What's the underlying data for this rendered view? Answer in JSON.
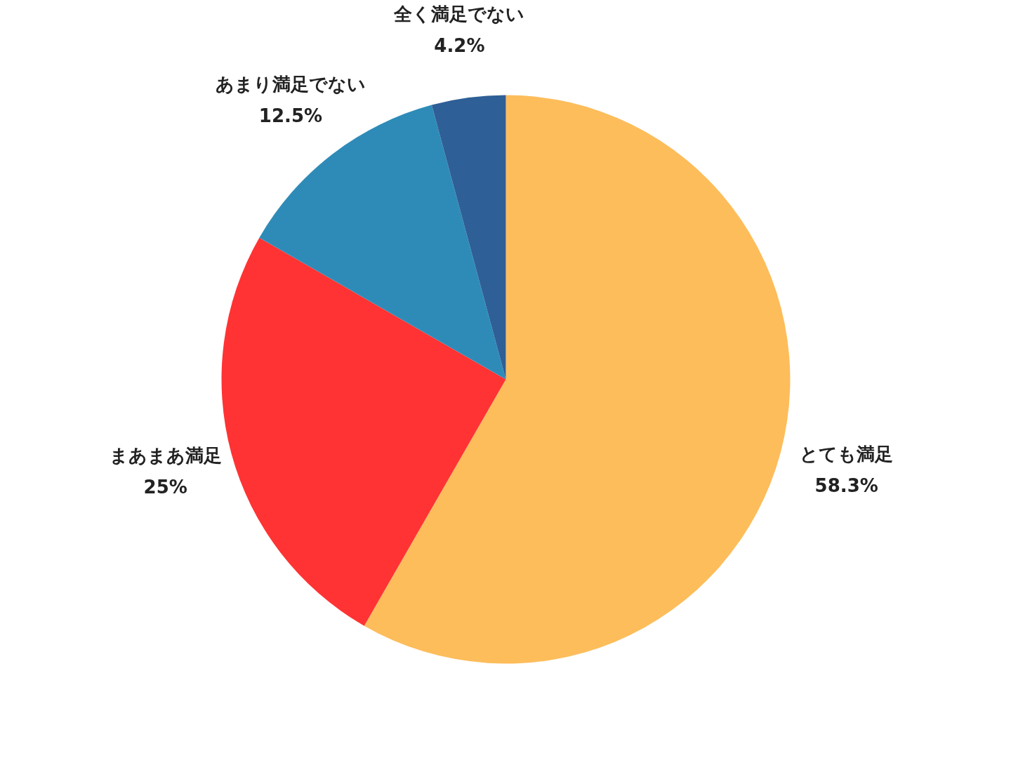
{
  "chart_data": {
    "type": "pie",
    "categories": [
      "とても満足",
      "まあまあ満足",
      "あまり満足でない",
      "全く満足でない"
    ],
    "values": [
      58.3,
      25,
      12.5,
      4.2
    ],
    "value_labels": [
      "58.3%",
      "25%",
      "12.5%",
      "4.2%"
    ],
    "colors": [
      "#fdbd5b",
      "#ff3333",
      "#2e8bb8",
      "#2e5f96"
    ],
    "legend": false
  }
}
